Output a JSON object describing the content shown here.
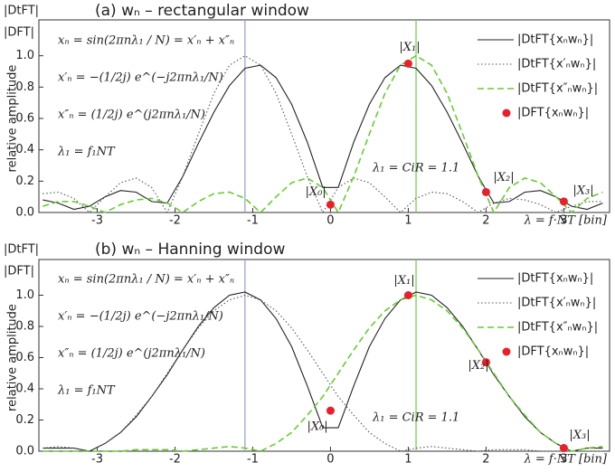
{
  "chart_data": [
    {
      "type": "line",
      "title": "(a) wₙ – rectangular window",
      "corner_labels": [
        "|DtFT|",
        "|DFT|"
      ],
      "xlabel": "λ = f·NT [bin]",
      "ylabel": "relative amplitude",
      "equations": [
        "xₙ = sin(2πnλ₁ / N) = x′ₙ + x″ₙ",
        "x′ₙ = −(1/2j) e^(−j2πnλ₁/N)",
        "x″ₙ = (1/2j) e^(j2πnλ₁/N)",
        "λ₁ = f₁NT"
      ],
      "annotation": "λ₁ = CiR = 1.1",
      "xlim": [
        -3.75,
        3.6
      ],
      "xticks": [
        -3,
        -2,
        -1,
        0,
        1,
        2,
        3
      ],
      "ylim": [
        0,
        1.2
      ],
      "yticks": [
        {
          "value": 0,
          "label": "0.0"
        },
        0.2,
        0.4,
        0.6,
        0.8,
        {
          "value": 1,
          "label": "1.0"
        }
      ],
      "vlines": [
        {
          "x": -1.1,
          "color": "#9aa5c8"
        },
        {
          "x": 1.1,
          "color": "#77d055"
        }
      ],
      "x": [
        -3.7,
        -3.5,
        -3.3,
        -3.1,
        -2.9,
        -2.7,
        -2.5,
        -2.3,
        -2.1,
        -1.9,
        -1.7,
        -1.5,
        -1.3,
        -1.1,
        -0.9,
        -0.7,
        -0.5,
        -0.3,
        -0.1,
        0.1,
        0.3,
        0.5,
        0.7,
        0.9,
        1.1,
        1.3,
        1.5,
        1.7,
        1.9,
        2.1,
        2.3,
        2.5,
        2.7,
        2.9,
        3.1,
        3.3,
        3.5
      ],
      "series": [
        {
          "name": "|DtFT{xₙwₙ}|",
          "color": "#222222",
          "style": "solid",
          "values": [
            0.08,
            0.06,
            0.02,
            0.04,
            0.1,
            0.14,
            0.13,
            0.07,
            0.06,
            0.23,
            0.44,
            0.64,
            0.81,
            0.92,
            0.94,
            0.86,
            0.69,
            0.45,
            0.16,
            0.16,
            0.45,
            0.69,
            0.86,
            0.94,
            0.92,
            0.81,
            0.64,
            0.44,
            0.23,
            0.06,
            0.07,
            0.13,
            0.14,
            0.1,
            0.04,
            0.02,
            0.06
          ]
        },
        {
          "name": "|DtFT{x′ₙwₙ}|",
          "color": "#555555",
          "style": "dotted",
          "values": [
            0.12,
            0.13,
            0.09,
            0,
            0.1,
            0.19,
            0.22,
            0.16,
            0,
            0.23,
            0.5,
            0.76,
            0.94,
            1,
            0.94,
            0.76,
            0.5,
            0.23,
            0,
            0.16,
            0.22,
            0.19,
            0.1,
            0,
            0.09,
            0.13,
            0.12,
            0.07,
            0,
            0.06,
            0.09,
            0.08,
            0.05,
            0,
            0.04,
            0.07,
            0.07
          ]
        },
        {
          "name": "|DtFT{x″ₙwₙ}|",
          "color": "#66cc33",
          "style": "dashed",
          "values": [
            0.04,
            0.07,
            0.07,
            0.04,
            0,
            0.05,
            0.08,
            0.09,
            0.06,
            0,
            0.07,
            0.12,
            0.13,
            0.09,
            0,
            0.1,
            0.19,
            0.22,
            0.16,
            0,
            0.23,
            0.5,
            0.76,
            0.94,
            1,
            0.94,
            0.76,
            0.5,
            0.23,
            0,
            0.16,
            0.22,
            0.19,
            0.1,
            0,
            0.09,
            0.13
          ]
        },
        {
          "name": "|DFT{xₙwₙ}|",
          "color": "#e8202a",
          "style": "points",
          "x": [
            0,
            1,
            2,
            3
          ],
          "values": [
            0.05,
            0.95,
            0.13,
            0.07
          ],
          "labels": [
            "|X₀|",
            "|X₁|",
            "|X₂|",
            "|X₃|"
          ]
        }
      ]
    },
    {
      "type": "line",
      "title": "(b) wₙ – Hanning window",
      "corner_labels": [
        "|DtFT|",
        "|DFT|"
      ],
      "xlabel": "λ = f·NT [bin]",
      "ylabel": "relative amplitude",
      "equations": [
        "xₙ = sin(2πnλ₁ / N) = x′ₙ + x″ₙ",
        "x′ₙ = −(1/2j) e^(−j2πnλ₁/N)",
        "x″ₙ = (1/2j) e^(j2πnλ₁/N)",
        "λ₁ = f₁NT"
      ],
      "annotation": "λ₁ = CiR = 1.1",
      "xlim": [
        -3.75,
        3.6
      ],
      "xticks": [
        -3,
        -2,
        -1,
        0,
        1,
        2,
        3
      ],
      "ylim": [
        0,
        1.2
      ],
      "yticks": [
        {
          "value": 0,
          "label": "0.0"
        },
        0.2,
        0.4,
        0.6,
        0.8,
        {
          "value": 1,
          "label": "1.0"
        }
      ],
      "vlines": [
        {
          "x": -1.1,
          "color": "#9aa5c8"
        },
        {
          "x": 1.1,
          "color": "#77d055"
        }
      ],
      "x": [
        -3.7,
        -3.5,
        -3.3,
        -3.1,
        -2.9,
        -2.7,
        -2.5,
        -2.3,
        -2.1,
        -1.9,
        -1.7,
        -1.5,
        -1.3,
        -1.1,
        -0.9,
        -0.7,
        -0.5,
        -0.3,
        -0.1,
        0.1,
        0.3,
        0.5,
        0.7,
        0.9,
        1.1,
        1.3,
        1.5,
        1.7,
        1.9,
        2.1,
        2.3,
        2.5,
        2.7,
        2.9,
        3.1,
        3.3,
        3.5
      ],
      "series": [
        {
          "name": "|DtFT{xₙwₙ}|",
          "color": "#222222",
          "style": "solid",
          "values": [
            0.02,
            0.02,
            0.02,
            0,
            0.05,
            0.12,
            0.22,
            0.35,
            0.49,
            0.65,
            0.8,
            0.92,
            1.0,
            1.02,
            0.97,
            0.85,
            0.67,
            0.42,
            0.15,
            0.15,
            0.42,
            0.67,
            0.85,
            0.97,
            1.02,
            1.0,
            0.92,
            0.8,
            0.65,
            0.49,
            0.35,
            0.22,
            0.12,
            0.05,
            0,
            0.02,
            0.02
          ]
        },
        {
          "name": "|DtFT{x′ₙwₙ}|",
          "color": "#555555",
          "style": "dotted",
          "values": [
            0.02,
            0.03,
            0.02,
            0,
            0.05,
            0.12,
            0.23,
            0.35,
            0.5,
            0.65,
            0.79,
            0.9,
            0.97,
            1,
            0.97,
            0.9,
            0.79,
            0.65,
            0.5,
            0.35,
            0.23,
            0.12,
            0.05,
            0,
            0.02,
            0.03,
            0.02,
            0.01,
            0,
            0.01,
            0.01,
            0.01,
            0,
            0,
            0,
            0,
            0
          ]
        },
        {
          "name": "|DtFT{x″ₙwₙ}|",
          "color": "#66cc33",
          "style": "dashed",
          "values": [
            0,
            0,
            0,
            0,
            0,
            0,
            0.01,
            0.01,
            0.01,
            0,
            0.01,
            0.02,
            0.03,
            0.02,
            0,
            0.05,
            0.12,
            0.23,
            0.35,
            0.5,
            0.65,
            0.79,
            0.9,
            0.97,
            1,
            0.97,
            0.9,
            0.79,
            0.65,
            0.5,
            0.35,
            0.23,
            0.12,
            0.05,
            0,
            0.02,
            0.03
          ]
        },
        {
          "name": "|DFT{xₙwₙ}|",
          "color": "#e8202a",
          "style": "points",
          "x": [
            0,
            1,
            2,
            3
          ],
          "values": [
            0.26,
            1.0,
            0.57,
            0.02
          ],
          "labels": [
            "|X₀|",
            "|X₁|",
            "|X₂|",
            "|X₃|"
          ]
        }
      ]
    }
  ]
}
